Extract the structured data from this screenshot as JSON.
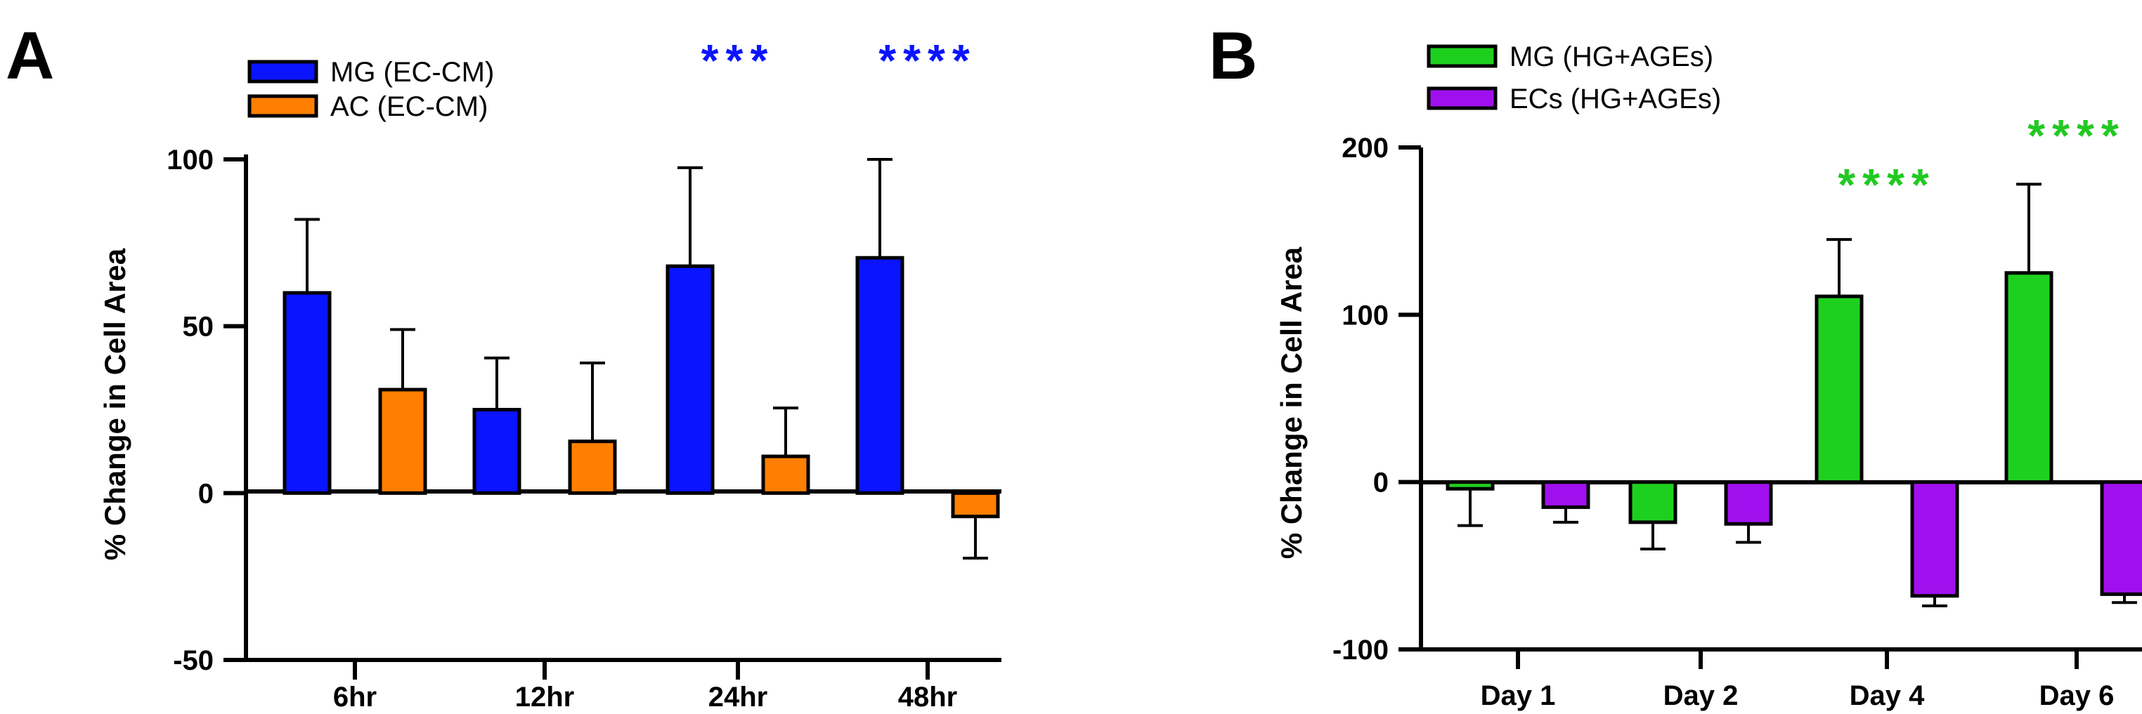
{
  "chart_data": [
    {
      "panel": "A",
      "type": "bar",
      "ylabel": "% Change in Cell Area",
      "xlabel": "",
      "ylim": [
        -50,
        100
      ],
      "yticks": [
        -50,
        0,
        50,
        100
      ],
      "categories": [
        "6hr",
        "12hr",
        "24hr",
        "48hr"
      ],
      "series": [
        {
          "name": "MG (EC-CM)",
          "color": "#0a14ff",
          "values": [
            60,
            25,
            68,
            70.5
          ],
          "errors": [
            22,
            15.5,
            29.5,
            29.5
          ]
        },
        {
          "name": "AC (EC-CM)",
          "color": "#ff7f00",
          "values": [
            31,
            15.5,
            11,
            -7
          ],
          "errors": [
            18,
            23.5,
            14.5,
            12.5
          ]
        }
      ],
      "annotations": [
        {
          "category": "24hr",
          "text": "***",
          "color": "#0a14ff"
        },
        {
          "category": "48hr",
          "text": "****",
          "color": "#0a14ff"
        }
      ],
      "legend": "top-left"
    },
    {
      "panel": "B",
      "type": "bar",
      "ylabel": "% Change in Cell Area",
      "xlabel": "",
      "ylim": [
        -100,
        200
      ],
      "yticks": [
        -100,
        0,
        100,
        200
      ],
      "categories": [
        "Day 1",
        "Day 2",
        "Day 4",
        "Day 6"
      ],
      "series": [
        {
          "name": "MG (HG+AGEs)",
          "color": "#1ed01e",
          "values": [
            -4,
            -24,
            111,
            125
          ],
          "errors": [
            22,
            16,
            34,
            53
          ]
        },
        {
          "name": "ECs (HG+AGEs)",
          "color": "#a010ee",
          "values": [
            -15,
            -25,
            -68,
            -67
          ],
          "errors": [
            9,
            11,
            6,
            5
          ]
        }
      ],
      "annotations": [
        {
          "category": "Day 4",
          "text": "****",
          "color": "#22c922"
        },
        {
          "category": "Day 6",
          "text": "****",
          "color": "#22c922"
        }
      ],
      "legend": "top-left"
    }
  ]
}
